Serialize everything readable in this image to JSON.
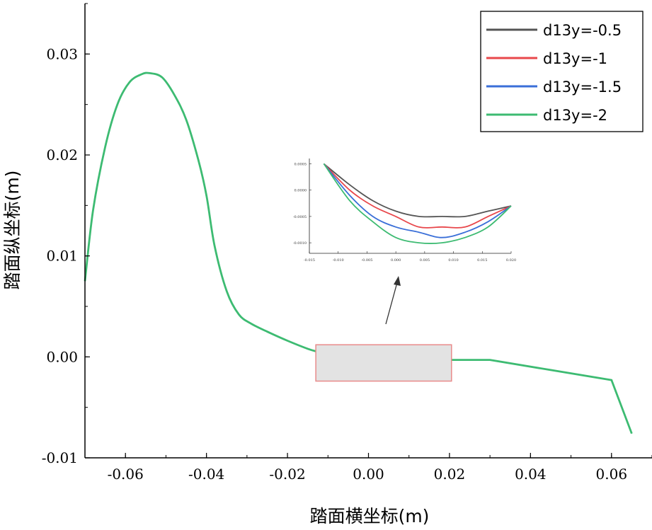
{
  "chart_data": {
    "type": "line",
    "title": "",
    "xlabel": "踏面横坐标(m)",
    "ylabel": "踏面纵坐标(m)",
    "xlim": [
      -0.07,
      0.07
    ],
    "ylim": [
      -0.01,
      0.035
    ],
    "xticks": [
      -0.06,
      -0.04,
      -0.02,
      0.0,
      0.02,
      0.04,
      0.06
    ],
    "xtick_labels": [
      "-0.06",
      "-0.04",
      "-0.02",
      "0.00",
      "0.02",
      "0.04",
      "0.06"
    ],
    "yticks": [
      -0.01,
      0.0,
      0.01,
      0.02,
      0.03
    ],
    "ytick_labels": [
      "-0.01",
      "0.00",
      "0.01",
      "0.02",
      "0.03"
    ],
    "legend": {
      "position": "top-right"
    },
    "grid": false,
    "colors": {
      "d13y=-0.5": "#555555",
      "d13y=-1": "#e8474b",
      "d13y=-1.5": "#3a6fd8",
      "d13y=-2": "#3dbb72"
    },
    "shared_profile": {
      "x": [
        -0.07,
        -0.068,
        -0.065,
        -0.062,
        -0.059,
        -0.056,
        -0.054,
        -0.051,
        -0.048,
        -0.045,
        -0.042,
        -0.04,
        -0.038,
        -0.035,
        -0.032,
        -0.029,
        -0.025,
        -0.02,
        -0.015,
        -0.0125
      ],
      "y": [
        0.0075,
        0.0145,
        0.0208,
        0.025,
        0.0272,
        0.028,
        0.0281,
        0.0277,
        0.026,
        0.0235,
        0.0195,
        0.016,
        0.011,
        0.0065,
        0.0042,
        0.0033,
        0.0025,
        0.0016,
        0.0008,
        0.0005
      ]
    },
    "shared_tail": {
      "x": [
        0.02,
        0.03,
        0.045,
        0.06,
        0.065
      ],
      "y": [
        -0.0003,
        -0.0003,
        -0.0013,
        -0.0023,
        -0.0076
      ]
    },
    "series": [
      {
        "name": "d13y=-0.5",
        "x": [
          -0.0125,
          -0.008,
          -0.004,
          0.0,
          0.004,
          0.008,
          0.012,
          0.016,
          0.02
        ],
        "y": [
          0.0005,
          0.0001,
          -0.0002,
          -0.0004,
          -0.0005,
          -0.0005,
          -0.0005,
          -0.0004,
          -0.0003
        ]
      },
      {
        "name": "d13y=-1",
        "x": [
          -0.0125,
          -0.008,
          -0.004,
          0.0,
          0.004,
          0.008,
          0.012,
          0.016,
          0.02
        ],
        "y": [
          0.0005,
          0.0,
          -0.0003,
          -0.0005,
          -0.0007,
          -0.0007,
          -0.0007,
          -0.0005,
          -0.0003
        ]
      },
      {
        "name": "d13y=-1.5",
        "x": [
          -0.0125,
          -0.008,
          -0.004,
          0.0,
          0.004,
          0.008,
          0.012,
          0.016,
          0.02
        ],
        "y": [
          0.0005,
          -0.0001,
          -0.0005,
          -0.0007,
          -0.0008,
          -0.0009,
          -0.0008,
          -0.0006,
          -0.0003
        ]
      },
      {
        "name": "d13y=-2",
        "x": [
          -0.0125,
          -0.008,
          -0.004,
          0.0,
          0.004,
          0.008,
          0.012,
          0.016,
          0.02
        ],
        "y": [
          0.0005,
          -0.0002,
          -0.0006,
          -0.0009,
          -0.001,
          -0.001,
          -0.0009,
          -0.0007,
          -0.0003
        ]
      }
    ],
    "inset": {
      "xlim": [
        -0.015,
        0.02
      ],
      "ylim": [
        -0.0012,
        0.0006
      ],
      "xtick_labels": [
        "-0.015",
        "-0.010",
        "-0.005",
        "0.000",
        "0.005",
        "0.010",
        "0.015",
        "0.020"
      ],
      "ytick_labels": [
        "0.0005",
        "0.0000",
        "-0.0005",
        "-0.0010"
      ]
    }
  }
}
